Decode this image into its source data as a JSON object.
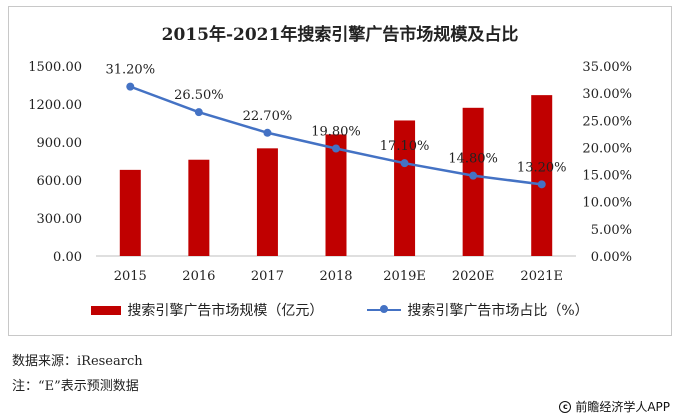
{
  "chart_data": {
    "type": "bar",
    "title": "2015年-2021年搜索引擎广告市场规模及占比",
    "categories": [
      "2015",
      "2016",
      "2017",
      "2018",
      "2019E",
      "2020E",
      "2021E"
    ],
    "series": [
      {
        "name": "搜索引擎广告市场规模（亿元）",
        "type": "bar",
        "axis": "left",
        "color": "#c00000",
        "values": [
          680,
          760,
          850,
          960,
          1070,
          1170,
          1270
        ]
      },
      {
        "name": "搜索引擎广告市场占比（%）",
        "type": "line",
        "axis": "right",
        "color": "#4472c4",
        "values": [
          31.2,
          26.5,
          22.7,
          19.8,
          17.1,
          14.8,
          13.2
        ],
        "labels": [
          "31.20%",
          "26.50%",
          "22.70%",
          "19.80%",
          "17.10%",
          "14.80%",
          "13.20%"
        ]
      }
    ],
    "y_left": {
      "lim": [
        0,
        1500
      ],
      "ticks": [
        "0.00",
        "300.00",
        "600.00",
        "900.00",
        "1200.00",
        "1500.00"
      ]
    },
    "y_right": {
      "lim": [
        0,
        35
      ],
      "ticks": [
        "0.00%",
        "5.00%",
        "10.00%",
        "15.00%",
        "20.00%",
        "25.00%",
        "30.00%",
        "35.00%"
      ]
    },
    "legend_position": "bottom"
  },
  "footnotes": {
    "source": "数据来源：iResearch",
    "note": "注：“E”表示预测数据"
  },
  "watermark": {
    "icon": "copyright-icon",
    "text": "前瞻经济学人APP"
  }
}
